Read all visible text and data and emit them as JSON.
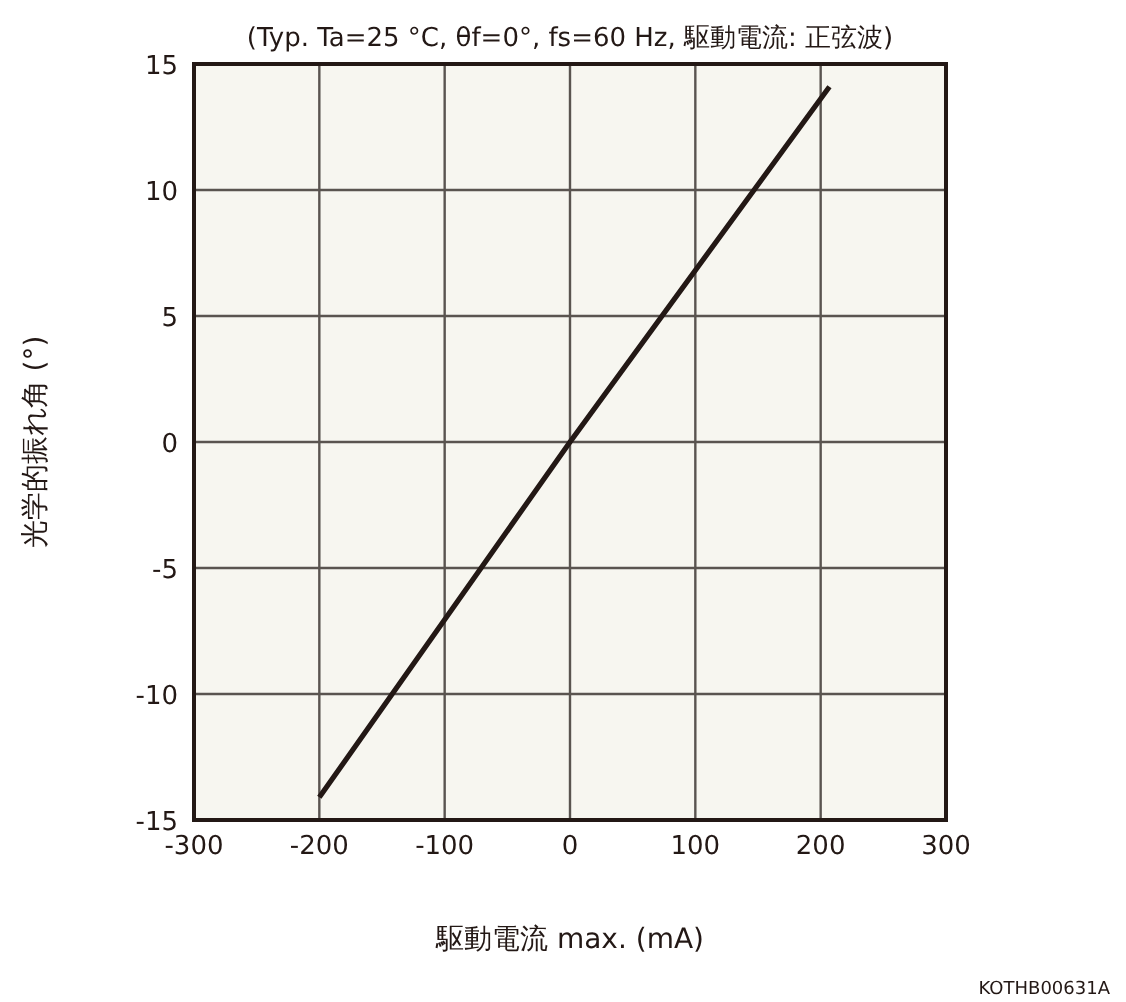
{
  "chart_data": {
    "type": "line",
    "title": "(Typ. Ta=25 °C, θf=0°, fs=60 Hz, 駆動電流: 正弦波)",
    "xlabel": "駆動電流 max. (mA)",
    "ylabel": "光学的振れ角 (°)",
    "x": [
      -200,
      0,
      207
    ],
    "series": [
      {
        "color": "#231815",
        "values": [
          -14.1,
          0,
          14.1
        ]
      }
    ],
    "xlim": [
      -300,
      300
    ],
    "xticks": [
      -300,
      -200,
      -100,
      0,
      100,
      200,
      300
    ],
    "ylim": [
      -15,
      15
    ],
    "yticks": [
      -15,
      -10,
      -5,
      0,
      5,
      10,
      15
    ],
    "grid": true,
    "marker": "none",
    "line_style": "solid",
    "annotations": [
      "KOTHB00631A"
    ]
  }
}
